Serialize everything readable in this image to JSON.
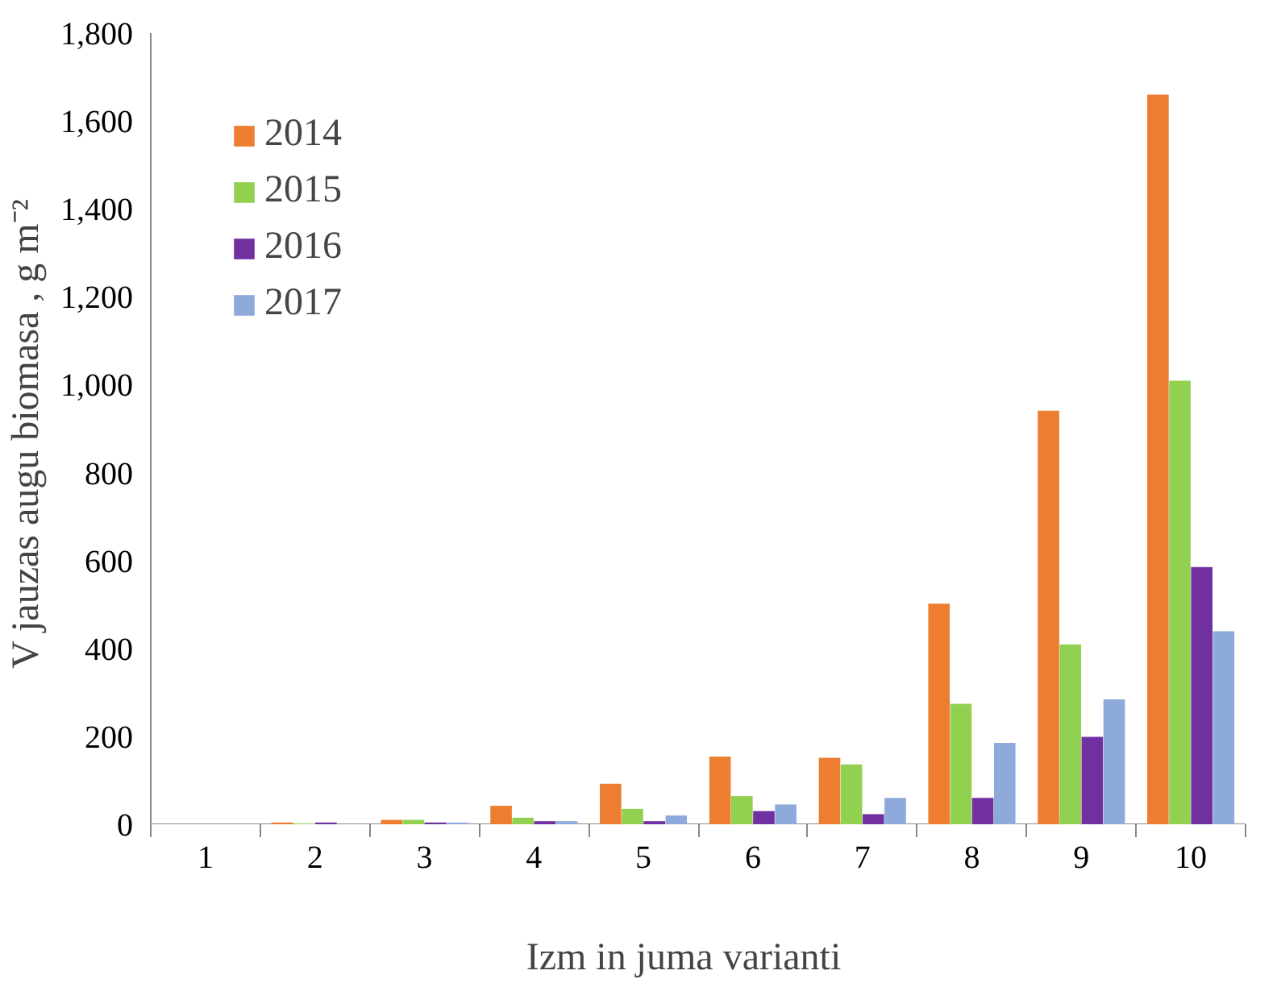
{
  "chart_data": {
    "type": "bar",
    "xlabel": "Izm   in  juma varianti",
    "ylabel": "V  jauzas augu biomasa , g m⁻²",
    "categories": [
      "1",
      "2",
      "3",
      "4",
      "5",
      "6",
      "7",
      "8",
      "9",
      "10"
    ],
    "series": [
      {
        "name": "2014",
        "color": "#ed7d31",
        "values": [
          0,
          4,
          10,
          42,
          92,
          154,
          151,
          502,
          941,
          1660
        ]
      },
      {
        "name": "2015",
        "color": "#92d050",
        "values": [
          0,
          2,
          10,
          15,
          35,
          64,
          136,
          274,
          409,
          1009
        ]
      },
      {
        "name": "2016",
        "color": "#7030a0",
        "values": [
          0,
          4,
          4,
          7,
          7,
          30,
          23,
          60,
          199,
          585
        ]
      },
      {
        "name": "2017",
        "color": "#8eaadb",
        "values": [
          0,
          0,
          4,
          7,
          20,
          45,
          60,
          185,
          284,
          439
        ]
      }
    ],
    "ylim": [
      0,
      1800
    ],
    "yticks": [
      0,
      200,
      400,
      600,
      800,
      {
        "value": 1000,
        "label": "1,000"
      },
      {
        "value": 1200,
        "label": "1,200"
      },
      {
        "value": 1400,
        "label": "1,400"
      },
      {
        "value": 1600,
        "label": "1,600"
      },
      {
        "value": 1800,
        "label": "1,800"
      }
    ],
    "grid": false,
    "legend": "top left"
  }
}
